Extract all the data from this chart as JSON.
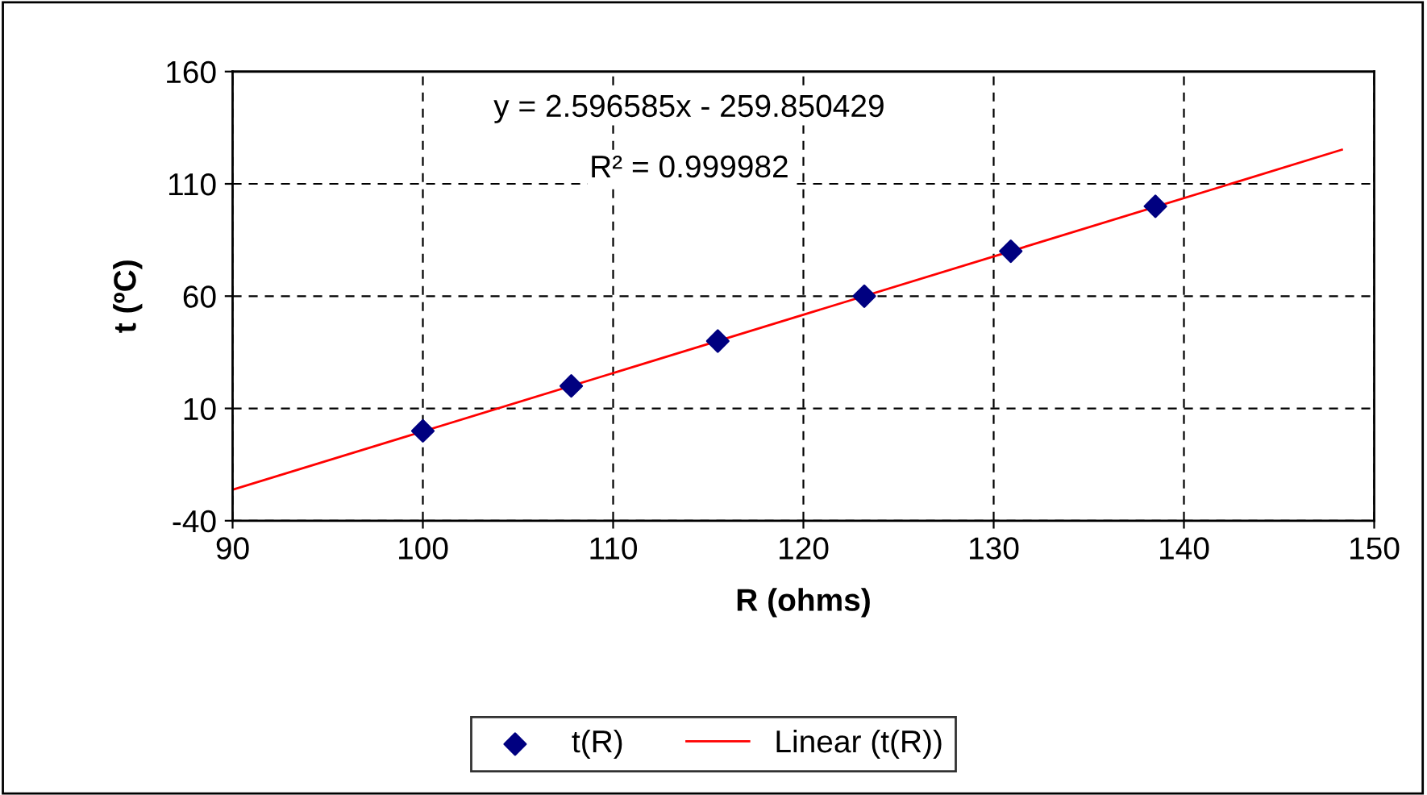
{
  "chart_data": {
    "type": "scatter",
    "xlabel": "R (ohms)",
    "ylabel": "t (ºC)",
    "xlim": [
      90,
      150
    ],
    "xticks": [
      90,
      100,
      110,
      120,
      130,
      140,
      150
    ],
    "ylim": [
      -40,
      160
    ],
    "yticks": [
      -40,
      10,
      60,
      110,
      160
    ],
    "grid": true,
    "legend": "bottom",
    "series": [
      {
        "name": "t(R)",
        "marker": "diamond",
        "color": "#000080",
        "x": [
          100,
          107.8,
          115.5,
          123.2,
          130.9,
          138.5
        ],
        "values": [
          0,
          20,
          40,
          60,
          80,
          100
        ]
      },
      {
        "name": "Linear (t(R))",
        "type": "line",
        "marker": "none",
        "line_style": "solid",
        "color": "#ff0000",
        "x": [
          90,
          148.3
        ],
        "values": [
          -26.2,
          125.2
        ]
      }
    ],
    "annotations": [
      "y = 2.596585x - 259.850429",
      "R² = 0.999982"
    ]
  }
}
